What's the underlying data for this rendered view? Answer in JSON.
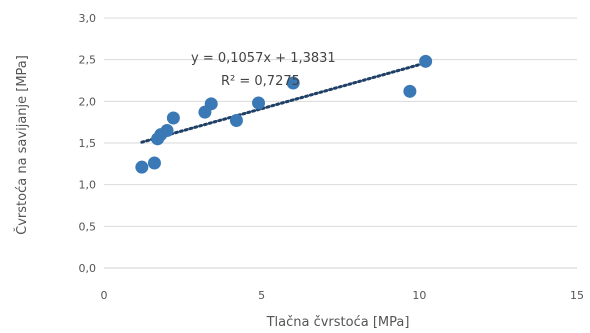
{
  "chart_data": {
    "type": "scatter",
    "title": "",
    "xlabel": "Tlačna čvrstoća [MPa]",
    "ylabel": "Čvrstoća na savijanje [MPa]",
    "xlim": [
      0,
      15
    ],
    "ylim": [
      0,
      3
    ],
    "xticks": [
      0,
      5,
      10,
      15
    ],
    "xtick_labels": [
      "0",
      "5",
      "10",
      "15"
    ],
    "yticks": [
      0,
      0.5,
      1,
      1.5,
      2,
      2.5,
      3
    ],
    "ytick_labels": [
      "0,0",
      "0,5",
      "1,0",
      "1,5",
      "2,0",
      "2,5",
      "3,0"
    ],
    "grid": "horizontal",
    "legend": "none",
    "series": [
      {
        "marker_color": "#3b79b6",
        "points": [
          {
            "x": 1.2,
            "y": 1.21
          },
          {
            "x": 1.6,
            "y": 1.26
          },
          {
            "x": 1.7,
            "y": 1.55
          },
          {
            "x": 1.8,
            "y": 1.6
          },
          {
            "x": 2.0,
            "y": 1.65
          },
          {
            "x": 2.2,
            "y": 1.8
          },
          {
            "x": 3.2,
            "y": 1.87
          },
          {
            "x": 3.4,
            "y": 1.97
          },
          {
            "x": 4.2,
            "y": 1.77
          },
          {
            "x": 4.9,
            "y": 1.98
          },
          {
            "x": 6.0,
            "y": 2.22
          },
          {
            "x": 9.7,
            "y": 2.12
          },
          {
            "x": 10.2,
            "y": 2.48
          }
        ]
      }
    ],
    "trendline": {
      "type": "linear",
      "slope": 0.1057,
      "intercept": 1.3831,
      "x_range": [
        1.2,
        10.2
      ],
      "style": "dotted",
      "color": "#1f3f66"
    },
    "annotations": {
      "equation": "y = 0,1057x + 1,3831",
      "r_squared": "R² = 0,7275"
    }
  }
}
